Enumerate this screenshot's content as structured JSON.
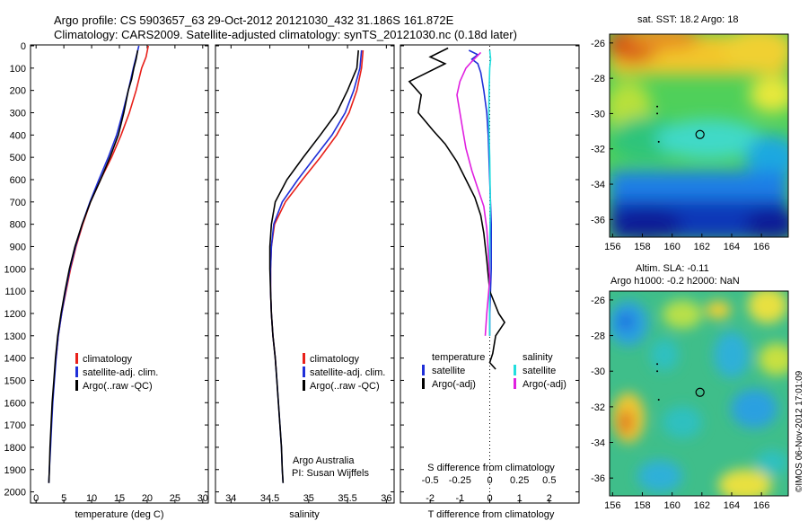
{
  "header": {
    "line1": "Argo profile: CS 5903657_63 29-Oct-2012 20121030_432 31.186S 161.872E",
    "line2": "Climatology: CARS2009. Satellite-adjusted climatology: synTS_20121030.nc (0.18d later)"
  },
  "colors": {
    "climatology": "#e8201a",
    "satellite": "#1f2fd8",
    "argo": "#000000",
    "sal_satellite": "#22dede",
    "sal_argo": "#e020e0"
  },
  "chart_data": [
    {
      "type": "line",
      "id": "temperature",
      "xlabel": "temperature (deg C)",
      "ylim": [
        0,
        2050
      ],
      "xlim": [
        -1,
        31
      ],
      "xticks": [
        0,
        5,
        10,
        15,
        20,
        25,
        30
      ],
      "yticks": [
        0,
        100,
        200,
        300,
        400,
        500,
        600,
        700,
        800,
        900,
        1000,
        1100,
        1200,
        1300,
        1400,
        1500,
        1600,
        1700,
        1800,
        1900,
        2000
      ],
      "legend": [
        "climatology",
        "satellite-adj. clim.",
        "Argo(..raw -QC)"
      ],
      "series": [
        {
          "name": "climatology",
          "color": "#e8201a",
          "points": [
            [
              20.2,
              0
            ],
            [
              19.8,
              50
            ],
            [
              19.0,
              100
            ],
            [
              18.0,
              200
            ],
            [
              16.8,
              300
            ],
            [
              15.3,
              400
            ],
            [
              13.6,
              500
            ],
            [
              11.6,
              600
            ],
            [
              9.8,
              700
            ],
            [
              8.4,
              800
            ],
            [
              7.2,
              900
            ],
            [
              6.2,
              1000
            ],
            [
              5.4,
              1100
            ],
            [
              4.6,
              1200
            ],
            [
              4.0,
              1300
            ],
            [
              3.6,
              1400
            ]
          ]
        },
        {
          "name": "satellite-adj. clim.",
          "color": "#1f2fd8",
          "points": [
            [
              18.5,
              0
            ],
            [
              18.0,
              50
            ],
            [
              17.5,
              100
            ],
            [
              16.6,
              200
            ],
            [
              15.6,
              300
            ],
            [
              14.5,
              400
            ],
            [
              13.0,
              500
            ],
            [
              11.3,
              600
            ],
            [
              9.7,
              700
            ],
            [
              8.3,
              800
            ],
            [
              7.1,
              900
            ],
            [
              6.1,
              1000
            ],
            [
              5.3,
              1100
            ],
            [
              4.6,
              1200
            ],
            [
              4.0,
              1300
            ],
            [
              3.6,
              1400
            ],
            [
              3.3,
              1500
            ],
            [
              3.0,
              1600
            ],
            [
              2.8,
              1700
            ],
            [
              2.6,
              1800
            ],
            [
              2.4,
              1900
            ],
            [
              2.3,
              1960
            ]
          ]
        },
        {
          "name": "Argo(..raw -QC)",
          "color": "#000000",
          "points": [
            [
              18.3,
              20
            ],
            [
              18.0,
              60
            ],
            [
              17.6,
              100
            ],
            [
              17.2,
              150
            ],
            [
              16.6,
              200
            ],
            [
              15.8,
              300
            ],
            [
              14.8,
              400
            ],
            [
              13.3,
              500
            ],
            [
              11.6,
              600
            ],
            [
              9.8,
              700
            ],
            [
              8.3,
              800
            ],
            [
              7.0,
              900
            ],
            [
              6.0,
              1000
            ],
            [
              5.2,
              1100
            ],
            [
              4.5,
              1200
            ],
            [
              3.9,
              1300
            ],
            [
              3.5,
              1400
            ],
            [
              3.2,
              1500
            ],
            [
              2.9,
              1600
            ],
            [
              2.7,
              1700
            ],
            [
              2.5,
              1800
            ],
            [
              2.4,
              1900
            ],
            [
              2.3,
              1960
            ]
          ]
        }
      ]
    },
    {
      "type": "line",
      "id": "salinity",
      "xlabel": "salinity",
      "ylim": [
        0,
        2050
      ],
      "xlim": [
        33.8,
        36.1
      ],
      "xticks": [
        34,
        34.5,
        35,
        35.5,
        36
      ],
      "xticklabels": [
        "34",
        "34.5",
        "35",
        "35.5",
        "36"
      ],
      "legend": [
        "climatology",
        "satellite-adj. clim.",
        "Argo(..raw -QC)"
      ],
      "annotation": [
        "Argo Australia",
        "PI: Susan Wijffels"
      ],
      "series": [
        {
          "name": "climatology",
          "color": "#e8201a",
          "points": [
            [
              35.7,
              20
            ],
            [
              35.68,
              100
            ],
            [
              35.62,
              200
            ],
            [
              35.52,
              300
            ],
            [
              35.36,
              400
            ],
            [
              35.15,
              500
            ],
            [
              34.92,
              600
            ],
            [
              34.7,
              700
            ],
            [
              34.56,
              800
            ],
            [
              34.52,
              900
            ],
            [
              34.51,
              1000
            ],
            [
              34.51,
              1100
            ],
            [
              34.52,
              1200
            ],
            [
              34.54,
              1300
            ],
            [
              34.57,
              1400
            ],
            [
              34.58,
              1450
            ]
          ]
        },
        {
          "name": "satellite-adj. clim.",
          "color": "#1f2fd8",
          "points": [
            [
              35.68,
              20
            ],
            [
              35.66,
              100
            ],
            [
              35.58,
              200
            ],
            [
              35.47,
              300
            ],
            [
              35.3,
              400
            ],
            [
              35.08,
              500
            ],
            [
              34.86,
              600
            ],
            [
              34.66,
              700
            ],
            [
              34.55,
              800
            ],
            [
              34.52,
              900
            ],
            [
              34.51,
              1000
            ],
            [
              34.51,
              1100
            ],
            [
              34.52,
              1200
            ],
            [
              34.54,
              1300
            ],
            [
              34.57,
              1400
            ],
            [
              34.59,
              1500
            ],
            [
              34.61,
              1600
            ],
            [
              34.63,
              1700
            ],
            [
              34.65,
              1800
            ],
            [
              34.66,
              1900
            ],
            [
              34.67,
              1960
            ]
          ]
        },
        {
          "name": "Argo(..raw -QC)",
          "color": "#000000",
          "points": [
            [
              35.64,
              20
            ],
            [
              35.62,
              100
            ],
            [
              35.5,
              200
            ],
            [
              35.36,
              300
            ],
            [
              35.15,
              400
            ],
            [
              34.93,
              500
            ],
            [
              34.72,
              600
            ],
            [
              34.57,
              700
            ],
            [
              34.52,
              800
            ],
            [
              34.5,
              900
            ],
            [
              34.5,
              1000
            ],
            [
              34.51,
              1100
            ],
            [
              34.52,
              1200
            ],
            [
              34.54,
              1300
            ],
            [
              34.57,
              1400
            ],
            [
              34.59,
              1500
            ],
            [
              34.61,
              1600
            ],
            [
              34.63,
              1700
            ],
            [
              34.65,
              1800
            ],
            [
              34.66,
              1900
            ],
            [
              34.67,
              1960
            ]
          ]
        }
      ]
    },
    {
      "type": "line",
      "id": "difference",
      "ylim": [
        0,
        2050
      ],
      "top_xlabel": "S difference from climatology",
      "top_xticks": [
        -0.5,
        -0.25,
        0,
        0.25,
        0.5
      ],
      "top_xticklabels": [
        "-0.5",
        "-0.25",
        "0",
        "0.25",
        "0.5"
      ],
      "xlabel": "T difference from climatology",
      "xlim": [
        -3,
        3
      ],
      "xticks": [
        -2,
        -1,
        0,
        1,
        2
      ],
      "xticklabels": [
        "-2",
        "-1",
        "0",
        "1",
        "2"
      ],
      "legend_left_title": "temperature",
      "legend_right_title": "salinity",
      "legend_left": [
        "satellite",
        "Argo(-adj)"
      ],
      "legend_right": [
        "satellite",
        "Argo(-adj)"
      ],
      "series": [
        {
          "name": "T satellite",
          "color": "#1f2fd8",
          "points": [
            [
              -0.7,
              20
            ],
            [
              -0.4,
              40
            ],
            [
              -0.6,
              60
            ],
            [
              -0.4,
              80
            ],
            [
              -0.3,
              120
            ],
            [
              -0.2,
              200
            ],
            [
              -0.1,
              300
            ],
            [
              -0.05,
              400
            ],
            [
              0.0,
              600
            ],
            [
              0.05,
              800
            ],
            [
              0.05,
              1000
            ],
            [
              0.0,
              1200
            ],
            [
              0.0,
              1300
            ]
          ]
        },
        {
          "name": "T Argo",
          "color": "#000000",
          "points": [
            [
              -1.4,
              10
            ],
            [
              -2.0,
              50
            ],
            [
              -1.5,
              80
            ],
            [
              -2.7,
              160
            ],
            [
              -2.3,
              220
            ],
            [
              -2.4,
              300
            ],
            [
              -1.9,
              380
            ],
            [
              -1.5,
              440
            ],
            [
              -1.1,
              520
            ],
            [
              -0.8,
              600
            ],
            [
              -0.5,
              680
            ],
            [
              -0.3,
              760
            ],
            [
              -0.2,
              840
            ],
            [
              -0.1,
              960
            ],
            [
              0.0,
              1100
            ],
            [
              0.3,
              1200
            ],
            [
              0.5,
              1240
            ],
            [
              0.2,
              1300
            ],
            [
              0.1,
              1380
            ],
            [
              0.0,
              1420
            ],
            [
              0.2,
              1450
            ]
          ]
        },
        {
          "name": "S satellite",
          "color": "#22dede",
          "points": [
            [
              0.0,
              20
            ],
            [
              0.03,
              60
            ],
            [
              0.0,
              100
            ],
            [
              -0.02,
              200
            ],
            [
              -0.03,
              300
            ],
            [
              -0.02,
              400
            ],
            [
              0.0,
              500
            ],
            [
              0.02,
              700
            ],
            [
              0.0,
              900
            ],
            [
              -0.01,
              1100
            ],
            [
              0.0,
              1300
            ]
          ]
        },
        {
          "name": "S Argo",
          "color": "#e020e0",
          "points": [
            [
              -0.3,
              30
            ],
            [
              -0.6,
              70
            ],
            [
              -0.8,
              100
            ],
            [
              -1.0,
              160
            ],
            [
              -1.1,
              220
            ],
            [
              -1.0,
              300
            ],
            [
              -0.9,
              380
            ],
            [
              -0.8,
              460
            ],
            [
              -0.6,
              560
            ],
            [
              -0.4,
              640
            ],
            [
              -0.2,
              720
            ],
            [
              -0.1,
              820
            ],
            [
              -0.05,
              920
            ],
            [
              0.0,
              1050
            ],
            [
              -0.1,
              1200
            ],
            [
              -0.15,
              1300
            ]
          ]
        }
      ]
    },
    {
      "type": "heatmap",
      "id": "sst_map",
      "title": "sat. SST: 18.2  Argo: 18",
      "xticks": [
        "156",
        "158",
        "160",
        "162",
        "164",
        "166"
      ],
      "yticks": [
        "-26",
        "-28",
        "-30",
        "-32",
        "-34",
        "-36"
      ],
      "xlim": [
        155.8,
        167.8
      ],
      "ylim": [
        -37,
        -25.5
      ],
      "marker": [
        161.872,
        -31.186
      ]
    },
    {
      "type": "heatmap",
      "id": "sla_map",
      "title_line1": "Altim. SLA: -0.11",
      "title_line2": "Argo h1000: -0.2  h2000: NaN",
      "xticks": [
        "156",
        "158",
        "160",
        "162",
        "164",
        "166"
      ],
      "yticks": [
        "-26",
        "-28",
        "-30",
        "-32",
        "-34",
        "-36"
      ],
      "xlim": [
        155.8,
        167.8
      ],
      "ylim": [
        -37,
        -25.5
      ],
      "marker": [
        161.872,
        -31.186
      ]
    }
  ],
  "footer_stamp": "©IMOS 06-Nov-2012 17:01:09"
}
